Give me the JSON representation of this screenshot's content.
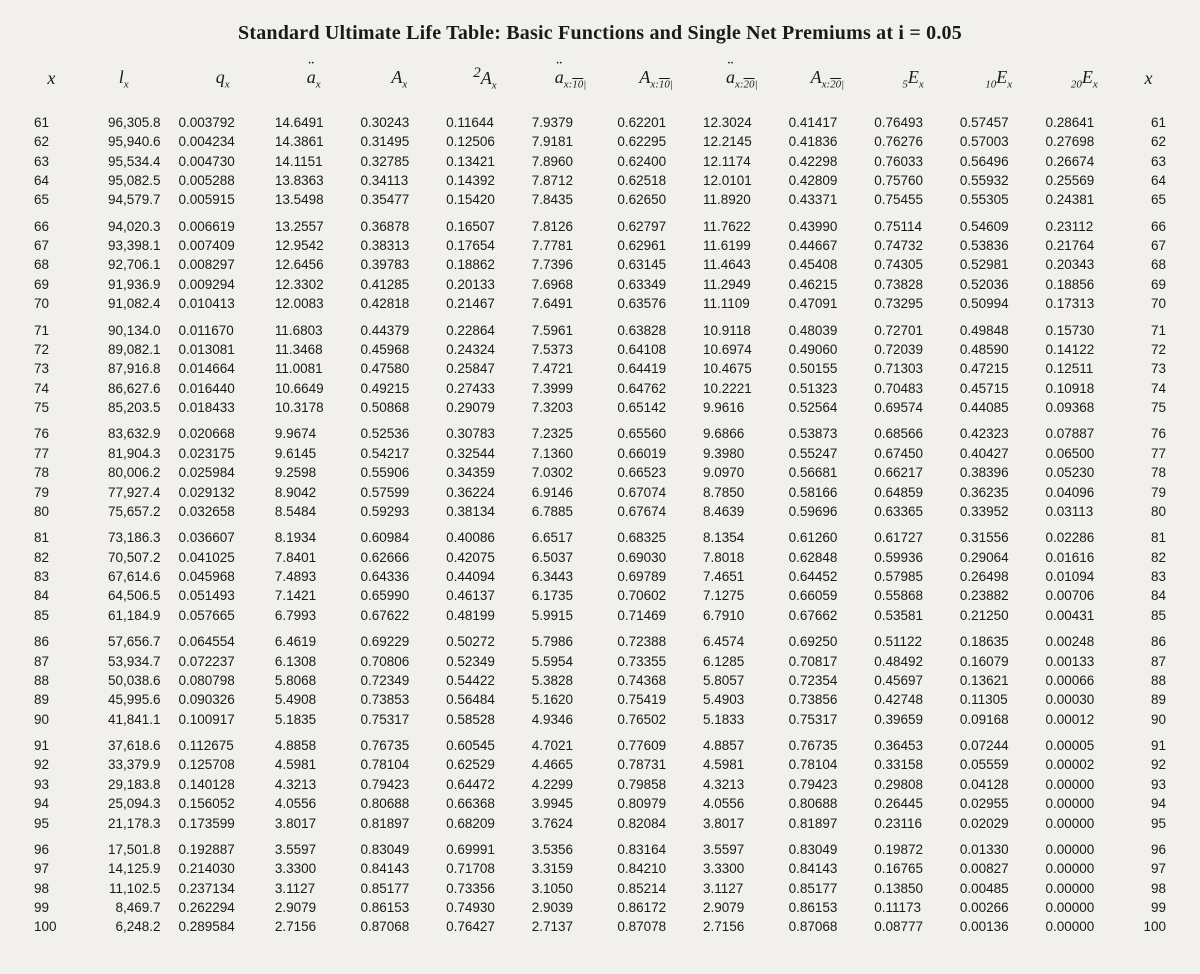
{
  "title": "Standard Ultimate Life Table: Basic Functions and Single Net Premiums at i = 0.05",
  "headers": [
    {
      "html": "x"
    },
    {
      "html": "l<sub>x</sub>"
    },
    {
      "html": "q<sub>x</sub>"
    },
    {
      "html": "<span class='dd'>a</span><sub>x</sub>"
    },
    {
      "html": "A<sub>x</sub>"
    },
    {
      "html": "<sup>2</sup>A<sub>x</sub>"
    },
    {
      "html": "<span class='dd'>a</span><sub>x:<span class='overline'>10</span>|</sub>"
    },
    {
      "html": "A<sub>x:<span class='overline'>10</span>|</sub>"
    },
    {
      "html": "<span class='dd'>a</span><sub>x:<span class='overline'>20</span>|</sub>"
    },
    {
      "html": "A<sub>x:<span class='overline'>20</span>|</sub>"
    },
    {
      "html": "<sub>5</sub>E<sub>x</sub>"
    },
    {
      "html": "<sub>10</sub>E<sub>x</sub>"
    },
    {
      "html": "<sub>20</sub>E<sub>x</sub>"
    },
    {
      "html": "x"
    }
  ],
  "blocks": [
    [
      [
        "61",
        "96,305.8",
        "0.003792",
        "14.6491",
        "0.30243",
        "0.11644",
        "7.9379",
        "0.62201",
        "12.3024",
        "0.41417",
        "0.76493",
        "0.57457",
        "0.28641",
        "61"
      ],
      [
        "62",
        "95,940.6",
        "0.004234",
        "14.3861",
        "0.31495",
        "0.12506",
        "7.9181",
        "0.62295",
        "12.2145",
        "0.41836",
        "0.76276",
        "0.57003",
        "0.27698",
        "62"
      ],
      [
        "63",
        "95,534.4",
        "0.004730",
        "14.1151",
        "0.32785",
        "0.13421",
        "7.8960",
        "0.62400",
        "12.1174",
        "0.42298",
        "0.76033",
        "0.56496",
        "0.26674",
        "63"
      ],
      [
        "64",
        "95,082.5",
        "0.005288",
        "13.8363",
        "0.34113",
        "0.14392",
        "7.8712",
        "0.62518",
        "12.0101",
        "0.42809",
        "0.75760",
        "0.55932",
        "0.25569",
        "64"
      ],
      [
        "65",
        "94,579.7",
        "0.005915",
        "13.5498",
        "0.35477",
        "0.15420",
        "7.8435",
        "0.62650",
        "11.8920",
        "0.43371",
        "0.75455",
        "0.55305",
        "0.24381",
        "65"
      ]
    ],
    [
      [
        "66",
        "94,020.3",
        "0.006619",
        "13.2557",
        "0.36878",
        "0.16507",
        "7.8126",
        "0.62797",
        "11.7622",
        "0.43990",
        "0.75114",
        "0.54609",
        "0.23112",
        "66"
      ],
      [
        "67",
        "93,398.1",
        "0.007409",
        "12.9542",
        "0.38313",
        "0.17654",
        "7.7781",
        "0.62961",
        "11.6199",
        "0.44667",
        "0.74732",
        "0.53836",
        "0.21764",
        "67"
      ],
      [
        "68",
        "92,706.1",
        "0.008297",
        "12.6456",
        "0.39783",
        "0.18862",
        "7.7396",
        "0.63145",
        "11.4643",
        "0.45408",
        "0.74305",
        "0.52981",
        "0.20343",
        "68"
      ],
      [
        "69",
        "91,936.9",
        "0.009294",
        "12.3302",
        "0.41285",
        "0.20133",
        "7.6968",
        "0.63349",
        "11.2949",
        "0.46215",
        "0.73828",
        "0.52036",
        "0.18856",
        "69"
      ],
      [
        "70",
        "91,082.4",
        "0.010413",
        "12.0083",
        "0.42818",
        "0.21467",
        "7.6491",
        "0.63576",
        "11.1109",
        "0.47091",
        "0.73295",
        "0.50994",
        "0.17313",
        "70"
      ]
    ],
    [
      [
        "71",
        "90,134.0",
        "0.011670",
        "11.6803",
        "0.44379",
        "0.22864",
        "7.5961",
        "0.63828",
        "10.9118",
        "0.48039",
        "0.72701",
        "0.49848",
        "0.15730",
        "71"
      ],
      [
        "72",
        "89,082.1",
        "0.013081",
        "11.3468",
        "0.45968",
        "0.24324",
        "7.5373",
        "0.64108",
        "10.6974",
        "0.49060",
        "0.72039",
        "0.48590",
        "0.14122",
        "72"
      ],
      [
        "73",
        "87,916.8",
        "0.014664",
        "11.0081",
        "0.47580",
        "0.25847",
        "7.4721",
        "0.64419",
        "10.4675",
        "0.50155",
        "0.71303",
        "0.47215",
        "0.12511",
        "73"
      ],
      [
        "74",
        "86,627.6",
        "0.016440",
        "10.6649",
        "0.49215",
        "0.27433",
        "7.3999",
        "0.64762",
        "10.2221",
        "0.51323",
        "0.70483",
        "0.45715",
        "0.10918",
        "74"
      ],
      [
        "75",
        "85,203.5",
        "0.018433",
        "10.3178",
        "0.50868",
        "0.29079",
        "7.3203",
        "0.65142",
        "9.9616",
        "0.52564",
        "0.69574",
        "0.44085",
        "0.09368",
        "75"
      ]
    ],
    [
      [
        "76",
        "83,632.9",
        "0.020668",
        "9.9674",
        "0.52536",
        "0.30783",
        "7.2325",
        "0.65560",
        "9.6866",
        "0.53873",
        "0.68566",
        "0.42323",
        "0.07887",
        "76"
      ],
      [
        "77",
        "81,904.3",
        "0.023175",
        "9.6145",
        "0.54217",
        "0.32544",
        "7.1360",
        "0.66019",
        "9.3980",
        "0.55247",
        "0.67450",
        "0.40427",
        "0.06500",
        "77"
      ],
      [
        "78",
        "80,006.2",
        "0.025984",
        "9.2598",
        "0.55906",
        "0.34359",
        "7.0302",
        "0.66523",
        "9.0970",
        "0.56681",
        "0.66217",
        "0.38396",
        "0.05230",
        "78"
      ],
      [
        "79",
        "77,927.4",
        "0.029132",
        "8.9042",
        "0.57599",
        "0.36224",
        "6.9146",
        "0.67074",
        "8.7850",
        "0.58166",
        "0.64859",
        "0.36235",
        "0.04096",
        "79"
      ],
      [
        "80",
        "75,657.2",
        "0.032658",
        "8.5484",
        "0.59293",
        "0.38134",
        "6.7885",
        "0.67674",
        "8.4639",
        "0.59696",
        "0.63365",
        "0.33952",
        "0.03113",
        "80"
      ]
    ],
    [
      [
        "81",
        "73,186.3",
        "0.036607",
        "8.1934",
        "0.60984",
        "0.40086",
        "6.6517",
        "0.68325",
        "8.1354",
        "0.61260",
        "0.61727",
        "0.31556",
        "0.02286",
        "81"
      ],
      [
        "82",
        "70,507.2",
        "0.041025",
        "7.8401",
        "0.62666",
        "0.42075",
        "6.5037",
        "0.69030",
        "7.8018",
        "0.62848",
        "0.59936",
        "0.29064",
        "0.01616",
        "82"
      ],
      [
        "83",
        "67,614.6",
        "0.045968",
        "7.4893",
        "0.64336",
        "0.44094",
        "6.3443",
        "0.69789",
        "7.4651",
        "0.64452",
        "0.57985",
        "0.26498",
        "0.01094",
        "83"
      ],
      [
        "84",
        "64,506.5",
        "0.051493",
        "7.1421",
        "0.65990",
        "0.46137",
        "6.1735",
        "0.70602",
        "7.1275",
        "0.66059",
        "0.55868",
        "0.23882",
        "0.00706",
        "84"
      ],
      [
        "85",
        "61,184.9",
        "0.057665",
        "6.7993",
        "0.67622",
        "0.48199",
        "5.9915",
        "0.71469",
        "6.7910",
        "0.67662",
        "0.53581",
        "0.21250",
        "0.00431",
        "85"
      ]
    ],
    [
      [
        "86",
        "57,656.7",
        "0.064554",
        "6.4619",
        "0.69229",
        "0.50272",
        "5.7986",
        "0.72388",
        "6.4574",
        "0.69250",
        "0.51122",
        "0.18635",
        "0.00248",
        "86"
      ],
      [
        "87",
        "53,934.7",
        "0.072237",
        "6.1308",
        "0.70806",
        "0.52349",
        "5.5954",
        "0.73355",
        "6.1285",
        "0.70817",
        "0.48492",
        "0.16079",
        "0.00133",
        "87"
      ],
      [
        "88",
        "50,038.6",
        "0.080798",
        "5.8068",
        "0.72349",
        "0.54422",
        "5.3828",
        "0.74368",
        "5.8057",
        "0.72354",
        "0.45697",
        "0.13621",
        "0.00066",
        "88"
      ],
      [
        "89",
        "45,995.6",
        "0.090326",
        "5.4908",
        "0.73853",
        "0.56484",
        "5.1620",
        "0.75419",
        "5.4903",
        "0.73856",
        "0.42748",
        "0.11305",
        "0.00030",
        "89"
      ],
      [
        "90",
        "41,841.1",
        "0.100917",
        "5.1835",
        "0.75317",
        "0.58528",
        "4.9346",
        "0.76502",
        "5.1833",
        "0.75317",
        "0.39659",
        "0.09168",
        "0.00012",
        "90"
      ]
    ],
    [
      [
        "91",
        "37,618.6",
        "0.112675",
        "4.8858",
        "0.76735",
        "0.60545",
        "4.7021",
        "0.77609",
        "4.8857",
        "0.76735",
        "0.36453",
        "0.07244",
        "0.00005",
        "91"
      ],
      [
        "92",
        "33,379.9",
        "0.125708",
        "4.5981",
        "0.78104",
        "0.62529",
        "4.4665",
        "0.78731",
        "4.5981",
        "0.78104",
        "0.33158",
        "0.05559",
        "0.00002",
        "92"
      ],
      [
        "93",
        "29,183.8",
        "0.140128",
        "4.3213",
        "0.79423",
        "0.64472",
        "4.2299",
        "0.79858",
        "4.3213",
        "0.79423",
        "0.29808",
        "0.04128",
        "0.00000",
        "93"
      ],
      [
        "94",
        "25,094.3",
        "0.156052",
        "4.0556",
        "0.80688",
        "0.66368",
        "3.9945",
        "0.80979",
        "4.0556",
        "0.80688",
        "0.26445",
        "0.02955",
        "0.00000",
        "94"
      ],
      [
        "95",
        "21,178.3",
        "0.173599",
        "3.8017",
        "0.81897",
        "0.68209",
        "3.7624",
        "0.82084",
        "3.8017",
        "0.81897",
        "0.23116",
        "0.02029",
        "0.00000",
        "95"
      ]
    ],
    [
      [
        "96",
        "17,501.8",
        "0.192887",
        "3.5597",
        "0.83049",
        "0.69991",
        "3.5356",
        "0.83164",
        "3.5597",
        "0.83049",
        "0.19872",
        "0.01330",
        "0.00000",
        "96"
      ],
      [
        "97",
        "14,125.9",
        "0.214030",
        "3.3300",
        "0.84143",
        "0.71708",
        "3.3159",
        "0.84210",
        "3.3300",
        "0.84143",
        "0.16765",
        "0.00827",
        "0.00000",
        "97"
      ],
      [
        "98",
        "11,102.5",
        "0.237134",
        "3.1127",
        "0.85177",
        "0.73356",
        "3.1050",
        "0.85214",
        "3.1127",
        "0.85177",
        "0.13850",
        "0.00485",
        "0.00000",
        "98"
      ],
      [
        "99",
        "8,469.7",
        "0.262294",
        "2.9079",
        "0.86153",
        "0.74930",
        "2.9039",
        "0.86172",
        "2.9079",
        "0.86153",
        "0.11173",
        "0.00266",
        "0.00000",
        "99"
      ],
      [
        "100",
        "6,248.2",
        "0.289584",
        "2.7156",
        "0.87068",
        "0.76427",
        "2.7137",
        "0.87078",
        "2.7156",
        "0.87068",
        "0.08777",
        "0.00136",
        "0.00000",
        "100"
      ]
    ]
  ],
  "style": {
    "page_bg": "#f1f0ed",
    "text_color": "#1a1a1a",
    "title_fontsize": 20,
    "body_fontsize": 13.5,
    "header_fontsize": 18
  }
}
